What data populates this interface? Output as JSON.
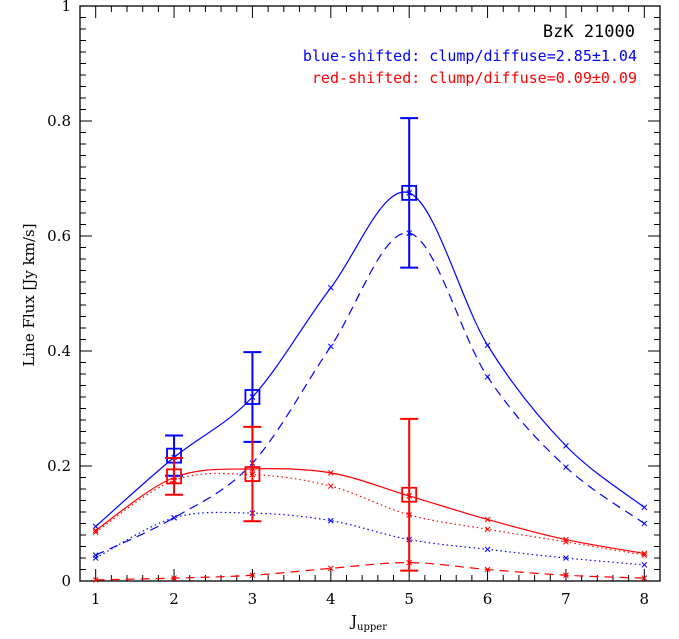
{
  "chart_data": {
    "type": "line",
    "title": "",
    "xlabel": "J",
    "xlabel_sub": "upper",
    "ylabel": "Line Flux [Jy km/s]",
    "xlim": [
      0.8,
      8.2
    ],
    "ylim": [
      0,
      1
    ],
    "x_ticks": [
      "1",
      "2",
      "3",
      "4",
      "5",
      "6",
      "7",
      "8"
    ],
    "y_ticks": [
      "0",
      "0.2",
      "0.4",
      "0.6",
      "0.8",
      "1"
    ],
    "grid": false,
    "annotations": {
      "object": "BzK 21000",
      "blue_text": "blue-shifted: clump/diffuse=2.85±1.04",
      "red_text": "red-shifted: clump/diffuse=0.09±0.09"
    },
    "colors": {
      "blue": "#0000ff",
      "red": "#ff0000"
    },
    "series": [
      {
        "color": "#0000ff",
        "style": "solid",
        "x": [
          1,
          2,
          3,
          4,
          5,
          6,
          7,
          8
        ],
        "y": [
          0.095,
          0.215,
          0.32,
          0.51,
          0.675,
          0.41,
          0.235,
          0.128
        ]
      },
      {
        "color": "#0000ff",
        "style": "dashed",
        "x": [
          1,
          2,
          3,
          4,
          5,
          6,
          7,
          8
        ],
        "y": [
          0.045,
          0.11,
          0.205,
          0.408,
          0.605,
          0.355,
          0.198,
          0.1
        ]
      },
      {
        "color": "#0000ff",
        "style": "dotted",
        "x": [
          1,
          2,
          3,
          4,
          5,
          6,
          7,
          8
        ],
        "y": [
          0.04,
          0.11,
          0.118,
          0.105,
          0.072,
          0.055,
          0.04,
          0.028
        ]
      },
      {
        "color": "#ff0000",
        "style": "solid",
        "x": [
          1,
          2,
          3,
          4,
          5,
          6,
          7,
          8
        ],
        "y": [
          0.088,
          0.18,
          0.195,
          0.188,
          0.148,
          0.107,
          0.072,
          0.048
        ]
      },
      {
        "color": "#ff0000",
        "style": "dotted",
        "x": [
          1,
          2,
          3,
          4,
          5,
          6,
          7,
          8
        ],
        "y": [
          0.085,
          0.175,
          0.185,
          0.165,
          0.115,
          0.09,
          0.068,
          0.045
        ]
      },
      {
        "color": "#ff0000",
        "style": "dashed",
        "x": [
          1,
          2,
          3,
          4,
          5,
          6,
          7,
          8
        ],
        "y": [
          0.002,
          0.005,
          0.01,
          0.022,
          0.032,
          0.02,
          0.01,
          0.005
        ]
      }
    ],
    "observed": [
      {
        "color": "#0000ff",
        "x": [
          2,
          3,
          5
        ],
        "y": [
          0.218,
          0.32,
          0.675
        ],
        "err": [
          0.035,
          0.078,
          0.13
        ]
      },
      {
        "color": "#ff0000",
        "x": [
          2,
          3,
          5
        ],
        "y": [
          0.182,
          0.186,
          0.15
        ],
        "err": [
          0.032,
          0.082,
          0.132
        ]
      }
    ]
  }
}
